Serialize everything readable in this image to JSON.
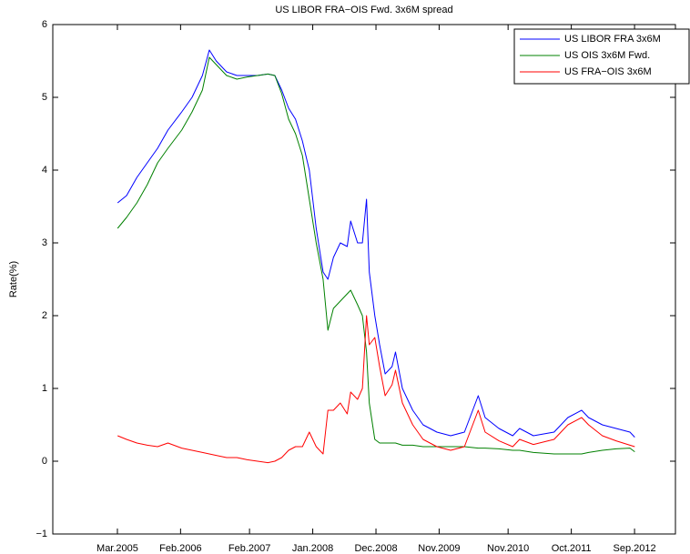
{
  "chart_data": {
    "type": "line",
    "title": "US LIBOR FRA−OIS Fwd. 3x6M spread",
    "y_label": "Rate(%)",
    "x": [
      2005.17,
      2005.3,
      2005.45,
      2005.6,
      2005.75,
      2005.9,
      2006.1,
      2006.25,
      2006.4,
      2006.5,
      2006.6,
      2006.75,
      2006.9,
      2007.05,
      2007.2,
      2007.35,
      2007.45,
      2007.55,
      2007.65,
      2007.75,
      2007.85,
      2007.95,
      2008.05,
      2008.15,
      2008.22,
      2008.3,
      2008.4,
      2008.5,
      2008.55,
      2008.65,
      2008.72,
      2008.78,
      2008.82,
      2008.9,
      2008.97,
      2009.05,
      2009.15,
      2009.2,
      2009.3,
      2009.45,
      2009.6,
      2009.8,
      2010.0,
      2010.2,
      2010.4,
      2010.5,
      2010.7,
      2010.9,
      2011.0,
      2011.2,
      2011.5,
      2011.7,
      2011.9,
      2012.0,
      2012.2,
      2012.4,
      2012.6,
      2012.67
    ],
    "series": [
      {
        "name": "US LIBOR FRA 3x6M",
        "color": "#0000ff",
        "values": [
          3.55,
          3.65,
          3.9,
          4.1,
          4.3,
          4.55,
          4.8,
          5.0,
          5.3,
          5.65,
          5.5,
          5.35,
          5.3,
          5.3,
          5.3,
          5.32,
          5.3,
          5.1,
          4.85,
          4.7,
          4.4,
          4.0,
          3.2,
          2.6,
          2.5,
          2.8,
          3.0,
          2.95,
          3.3,
          3.0,
          3.0,
          3.6,
          2.6,
          2.0,
          1.6,
          1.2,
          1.3,
          1.5,
          1.0,
          0.7,
          0.5,
          0.4,
          0.35,
          0.4,
          0.9,
          0.6,
          0.45,
          0.35,
          0.45,
          0.35,
          0.4,
          0.6,
          0.7,
          0.6,
          0.5,
          0.45,
          0.4,
          0.33
        ]
      },
      {
        "name": "US OIS 3x6M Fwd.",
        "color": "#008000",
        "values": [
          3.2,
          3.35,
          3.55,
          3.8,
          4.1,
          4.3,
          4.55,
          4.8,
          5.1,
          5.55,
          5.45,
          5.3,
          5.25,
          5.28,
          5.3,
          5.32,
          5.3,
          5.05,
          4.7,
          4.5,
          4.2,
          3.6,
          3.0,
          2.5,
          1.8,
          2.1,
          2.2,
          2.3,
          2.35,
          2.15,
          2.0,
          1.5,
          0.8,
          0.3,
          0.25,
          0.25,
          0.25,
          0.25,
          0.22,
          0.22,
          0.2,
          0.2,
          0.2,
          0.2,
          0.18,
          0.18,
          0.17,
          0.15,
          0.15,
          0.12,
          0.1,
          0.1,
          0.1,
          0.12,
          0.15,
          0.17,
          0.18,
          0.13
        ]
      },
      {
        "name": "US FRA−OIS 3x6M",
        "color": "#ff0000",
        "values": [
          0.35,
          0.3,
          0.25,
          0.22,
          0.2,
          0.25,
          0.18,
          0.15,
          0.12,
          0.1,
          0.08,
          0.05,
          0.05,
          0.02,
          0.0,
          -0.02,
          0.0,
          0.05,
          0.15,
          0.2,
          0.2,
          0.4,
          0.2,
          0.1,
          0.7,
          0.7,
          0.8,
          0.65,
          0.95,
          0.85,
          1.0,
          2.0,
          1.6,
          1.7,
          1.3,
          0.9,
          1.05,
          1.25,
          0.8,
          0.5,
          0.3,
          0.2,
          0.15,
          0.2,
          0.7,
          0.4,
          0.28,
          0.2,
          0.3,
          0.23,
          0.3,
          0.5,
          0.6,
          0.5,
          0.35,
          0.28,
          0.22,
          0.2
        ]
      }
    ],
    "xlim": [
      2004.23,
      2013.26
    ],
    "xticks": [
      {
        "value": 2005.167,
        "label": "Mar.2005"
      },
      {
        "value": 2006.083,
        "label": "Feb.2006"
      },
      {
        "value": 2007.083,
        "label": "Feb.2007"
      },
      {
        "value": 2008.0,
        "label": "Jan.2008"
      },
      {
        "value": 2008.917,
        "label": "Dec.2008"
      },
      {
        "value": 2009.833,
        "label": "Nov.2009"
      },
      {
        "value": 2010.833,
        "label": "Nov.2010"
      },
      {
        "value": 2011.75,
        "label": "Oct.2011"
      },
      {
        "value": 2012.667,
        "label": "Sep.2012"
      }
    ],
    "ylim": [
      -1,
      6
    ],
    "yticks": [
      {
        "value": -1,
        "label": "−1"
      },
      0,
      1,
      2,
      3,
      4,
      5,
      6
    ],
    "legend": "upper right"
  }
}
